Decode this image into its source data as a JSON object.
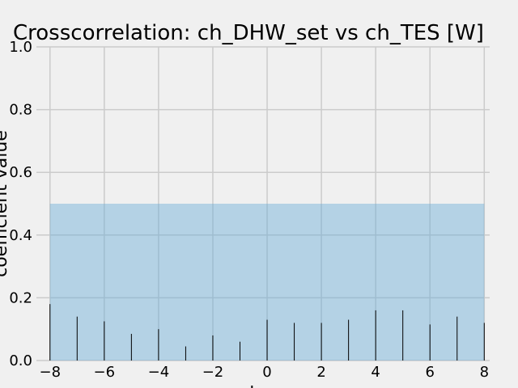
{
  "chart_data": {
    "type": "bar",
    "title": "Crosscorrelation: ch_DHW_set vs ch_TES [W]",
    "xlabel": "lag",
    "ylabel": "coefficient value",
    "x": [
      -8,
      -7,
      -6,
      -5,
      -4,
      -3,
      -2,
      -1,
      0,
      1,
      2,
      3,
      4,
      5,
      6,
      7,
      8
    ],
    "values": [
      0.18,
      0.14,
      0.125,
      0.085,
      0.1,
      0.045,
      0.08,
      0.06,
      0.13,
      0.12,
      0.12,
      0.13,
      0.16,
      0.16,
      0.115,
      0.14,
      0.12
    ],
    "xlim": [
      -8.5,
      8.2
    ],
    "ylim": [
      0,
      1.0
    ],
    "xticks": [
      -8,
      -6,
      -4,
      -2,
      0,
      2,
      4,
      6,
      8
    ],
    "yticks": [
      0.0,
      0.2,
      0.4,
      0.6,
      0.8,
      1.0
    ],
    "band": {
      "x": [
        -8,
        8
      ],
      "y": [
        0,
        0.5
      ]
    },
    "grid": true,
    "legend": "none",
    "colors": {
      "background": "#f0f0f0",
      "band": "#6baed6",
      "stem": "#000000",
      "grid": "#cbcbcb"
    }
  }
}
